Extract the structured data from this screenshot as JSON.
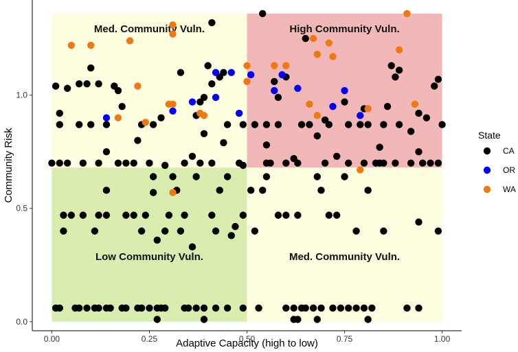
{
  "chart_data": {
    "type": "scatter",
    "xlabel": "Adaptive Capacity (high to low)",
    "ylabel": "Community Risk",
    "xlim": [
      -0.05,
      1.05
    ],
    "ylim": [
      -0.04,
      1.42
    ],
    "x_ticks": [
      0,
      0.25,
      0.5,
      0.75,
      1.0
    ],
    "x_tick_labels": [
      "0.00",
      "0.25",
      "0.50",
      "0.75",
      "1.00"
    ],
    "y_ticks": [
      0,
      0.5,
      1.0
    ],
    "y_tick_labels": [
      "0.0",
      "0.5",
      "1.0"
    ],
    "grid": false,
    "legend": {
      "title": "State",
      "placement": "right"
    },
    "colors": {
      "CA": "#000000",
      "OR": "#0000ff",
      "WA": "#f07810"
    },
    "regions": [
      {
        "label": "Med. Community Vuln.",
        "x": [
          0,
          0.5
        ],
        "y": [
          0.68,
          1.36
        ],
        "color": "#fdfde0"
      },
      {
        "label": "High Community Vuln.",
        "x": [
          0.5,
          1.0
        ],
        "y": [
          0.68,
          1.36
        ],
        "color": "#f2b7b7"
      },
      {
        "label": "Low Community Vuln.",
        "x": [
          0,
          0.5
        ],
        "y": [
          0,
          0.68
        ],
        "color": "#d9edaf"
      },
      {
        "label": "Med. Community Vuln.",
        "x": [
          0.5,
          1.0
        ],
        "y": [
          0,
          0.68
        ],
        "color": "#fdfde0"
      }
    ],
    "series": [
      {
        "name": "CA",
        "points": [
          [
            0.01,
            1.04
          ],
          [
            0.02,
            0.92
          ],
          [
            0.04,
            1.03
          ],
          [
            0.07,
            1.05
          ],
          [
            0.1,
            1.12
          ],
          [
            0.09,
            1.05
          ],
          [
            0.12,
            1.05
          ],
          [
            0.16,
            1.04
          ],
          [
            0.17,
            1.02
          ],
          [
            0.18,
            0.95
          ],
          [
            0.14,
            0.87
          ],
          [
            0.1,
            0.87
          ],
          [
            0.07,
            0.87
          ],
          [
            0.02,
            0.87
          ],
          [
            0.22,
            0.8
          ],
          [
            0.23,
            0.87
          ],
          [
            0.26,
            0.87
          ],
          [
            0.28,
            0.9
          ],
          [
            0.33,
            1.1
          ],
          [
            0.41,
            1.32
          ],
          [
            0.4,
            1.13
          ],
          [
            0.38,
            0.97
          ],
          [
            0.37,
            0.91
          ],
          [
            0.39,
            0.99
          ],
          [
            0.39,
            0.83
          ],
          [
            0.41,
            1.05
          ],
          [
            0.43,
            1.08
          ],
          [
            0.44,
            1.1
          ],
          [
            0.45,
            0.87
          ],
          [
            0.49,
            0.87
          ],
          [
            0.44,
            0.79
          ],
          [
            0.36,
            0.73
          ],
          [
            0.14,
            0.75
          ],
          [
            0.0,
            0.7
          ],
          [
            0.02,
            0.7
          ],
          [
            0.04,
            0.7
          ],
          [
            0.08,
            0.7
          ],
          [
            0.12,
            0.7
          ],
          [
            0.17,
            0.7
          ],
          [
            0.19,
            0.7
          ],
          [
            0.21,
            0.7
          ],
          [
            0.25,
            0.7
          ],
          [
            0.29,
            0.69
          ],
          [
            0.34,
            0.7
          ],
          [
            0.38,
            0.7
          ],
          [
            0.41,
            0.7
          ],
          [
            0.48,
            0.7
          ],
          [
            0.49,
            0.69
          ],
          [
            0.55,
            0.7
          ],
          [
            0.6,
            0.7
          ],
          [
            0.63,
            0.7
          ],
          [
            0.7,
            0.7
          ],
          [
            0.76,
            0.7
          ],
          [
            0.8,
            0.7
          ],
          [
            0.83,
            0.7
          ],
          [
            0.85,
            0.7
          ],
          [
            0.88,
            0.7
          ],
          [
            0.92,
            0.7
          ],
          [
            0.95,
            0.7
          ],
          [
            0.99,
            0.7
          ],
          [
            0.97,
            0.7
          ],
          [
            0.54,
            1.36
          ],
          [
            0.65,
            1.25
          ],
          [
            0.6,
            1.08
          ],
          [
            0.57,
            1.06
          ],
          [
            0.58,
            0.99
          ],
          [
            0.7,
            0.89
          ],
          [
            0.75,
            0.97
          ],
          [
            0.76,
            0.87
          ],
          [
            0.8,
            0.94
          ],
          [
            0.87,
            1.13
          ],
          [
            0.88,
            1.08
          ],
          [
            0.89,
            1.11
          ],
          [
            0.94,
            0.92
          ],
          [
            0.96,
            0.9
          ],
          [
            0.98,
            1.04
          ],
          [
            0.99,
            1.07
          ],
          [
            0.89,
            0.87
          ],
          [
            0.86,
            0.95
          ],
          [
            0.85,
            0.87
          ],
          [
            0.81,
            0.87
          ],
          [
            0.92,
            0.84
          ],
          [
            0.94,
            0.75
          ],
          [
            0.84,
            0.77
          ],
          [
            0.73,
            0.73
          ],
          [
            0.68,
            0.82
          ],
          [
            0.55,
            0.78
          ],
          [
            0.62,
            0.72
          ],
          [
            0.56,
            0.7
          ],
          [
            0.52,
            0.87
          ],
          [
            0.55,
            0.87
          ],
          [
            0.58,
            0.87
          ],
          [
            0.64,
            0.87
          ],
          [
            0.66,
            0.87
          ],
          [
            0.71,
            0.87
          ],
          [
            0.79,
            0.87
          ],
          [
            0.84,
            0.7
          ],
          [
            1.0,
            0.87
          ],
          [
            0.26,
            0.64
          ],
          [
            0.31,
            0.64
          ],
          [
            0.37,
            0.64
          ],
          [
            0.45,
            0.64
          ],
          [
            0.55,
            0.64
          ],
          [
            0.68,
            0.64
          ],
          [
            0.75,
            0.64
          ],
          [
            0.14,
            0.58
          ],
          [
            0.26,
            0.57
          ],
          [
            0.32,
            0.58
          ],
          [
            0.43,
            0.58
          ],
          [
            0.51,
            0.58
          ],
          [
            0.54,
            0.58
          ],
          [
            0.69,
            0.58
          ],
          [
            0.81,
            0.58
          ],
          [
            0.03,
            0.47
          ],
          [
            0.05,
            0.47
          ],
          [
            0.08,
            0.47
          ],
          [
            0.12,
            0.47
          ],
          [
            0.14,
            0.47
          ],
          [
            0.19,
            0.47
          ],
          [
            0.21,
            0.47
          ],
          [
            0.24,
            0.47
          ],
          [
            0.3,
            0.47
          ],
          [
            0.34,
            0.47
          ],
          [
            0.41,
            0.47
          ],
          [
            0.49,
            0.47
          ],
          [
            0.58,
            0.47
          ],
          [
            0.6,
            0.47
          ],
          [
            0.63,
            0.47
          ],
          [
            0.71,
            0.47
          ],
          [
            0.73,
            0.47
          ],
          [
            0.94,
            0.44
          ],
          [
            0.03,
            0.4
          ],
          [
            0.11,
            0.4
          ],
          [
            0.23,
            0.4
          ],
          [
            0.29,
            0.4
          ],
          [
            0.33,
            0.4
          ],
          [
            0.42,
            0.4
          ],
          [
            0.47,
            0.42
          ],
          [
            0.52,
            0.4
          ],
          [
            0.78,
            0.4
          ],
          [
            0.85,
            0.4
          ],
          [
            0.99,
            0.4
          ],
          [
            0.36,
            0.33
          ],
          [
            0.27,
            0.36
          ],
          [
            0.46,
            0.38
          ],
          [
            0.01,
            0.06
          ],
          [
            0.02,
            0.06
          ],
          [
            0.06,
            0.06
          ],
          [
            0.07,
            0.06
          ],
          [
            0.09,
            0.06
          ],
          [
            0.11,
            0.06
          ],
          [
            0.12,
            0.06
          ],
          [
            0.14,
            0.06
          ],
          [
            0.15,
            0.06
          ],
          [
            0.18,
            0.06
          ],
          [
            0.19,
            0.06
          ],
          [
            0.22,
            0.06
          ],
          [
            0.23,
            0.06
          ],
          [
            0.25,
            0.06
          ],
          [
            0.27,
            0.06
          ],
          [
            0.28,
            0.06
          ],
          [
            0.29,
            0.06
          ],
          [
            0.34,
            0.06
          ],
          [
            0.35,
            0.06
          ],
          [
            0.37,
            0.06
          ],
          [
            0.39,
            0.06
          ],
          [
            0.42,
            0.06
          ],
          [
            0.45,
            0.06
          ],
          [
            0.49,
            0.06
          ],
          [
            0.53,
            0.06
          ],
          [
            0.6,
            0.06
          ],
          [
            0.62,
            0.06
          ],
          [
            0.64,
            0.06
          ],
          [
            0.65,
            0.06
          ],
          [
            0.67,
            0.06
          ],
          [
            0.69,
            0.06
          ],
          [
            0.72,
            0.06
          ],
          [
            0.74,
            0.06
          ],
          [
            0.76,
            0.06
          ],
          [
            0.78,
            0.06
          ],
          [
            0.8,
            0.06
          ],
          [
            0.82,
            0.06
          ],
          [
            0.91,
            0.06
          ],
          [
            0.94,
            0.06
          ],
          [
            0.27,
            0.01
          ],
          [
            0.39,
            0.01
          ],
          [
            0.62,
            0.01
          ],
          [
            0.63,
            0.01
          ],
          [
            0.68,
            0.01
          ],
          [
            0.81,
            0.01
          ]
        ]
      },
      {
        "name": "OR",
        "points": [
          [
            0.14,
            0.9
          ],
          [
            0.31,
            0.93
          ],
          [
            0.36,
            0.97
          ],
          [
            0.42,
            0.99
          ],
          [
            0.42,
            1.1
          ],
          [
            0.46,
            1.1
          ],
          [
            0.48,
            0.92
          ],
          [
            0.51,
            1.09
          ],
          [
            0.57,
            1.02
          ],
          [
            0.59,
            1.09
          ],
          [
            0.63,
            1.03
          ],
          [
            0.72,
            0.95
          ],
          [
            0.75,
            1.02
          ],
          [
            0.79,
            0.91
          ]
        ]
      },
      {
        "name": "WA",
        "points": [
          [
            0.05,
            1.22
          ],
          [
            0.1,
            1.22
          ],
          [
            0.2,
            1.24
          ],
          [
            0.22,
            1.04
          ],
          [
            0.17,
            0.9
          ],
          [
            0.24,
            0.88
          ],
          [
            0.3,
            0.96
          ],
          [
            0.31,
            0.96
          ],
          [
            0.31,
            1.27
          ],
          [
            0.31,
            1.31
          ],
          [
            0.38,
            0.92
          ],
          [
            0.39,
            0.91
          ],
          [
            0.5,
            1.06
          ],
          [
            0.5,
            1.13
          ],
          [
            0.57,
            1.13
          ],
          [
            0.6,
            1.13
          ],
          [
            0.67,
            1.25
          ],
          [
            0.68,
            1.18
          ],
          [
            0.71,
            1.23
          ],
          [
            0.72,
            1.17
          ],
          [
            0.66,
            0.96
          ],
          [
            0.68,
            0.91
          ],
          [
            0.81,
            0.94
          ],
          [
            0.89,
            1.2
          ],
          [
            0.91,
            1.36
          ],
          [
            0.93,
            0.96
          ],
          [
            0.79,
            0.67
          ],
          [
            0.31,
            0.57
          ]
        ]
      }
    ]
  }
}
